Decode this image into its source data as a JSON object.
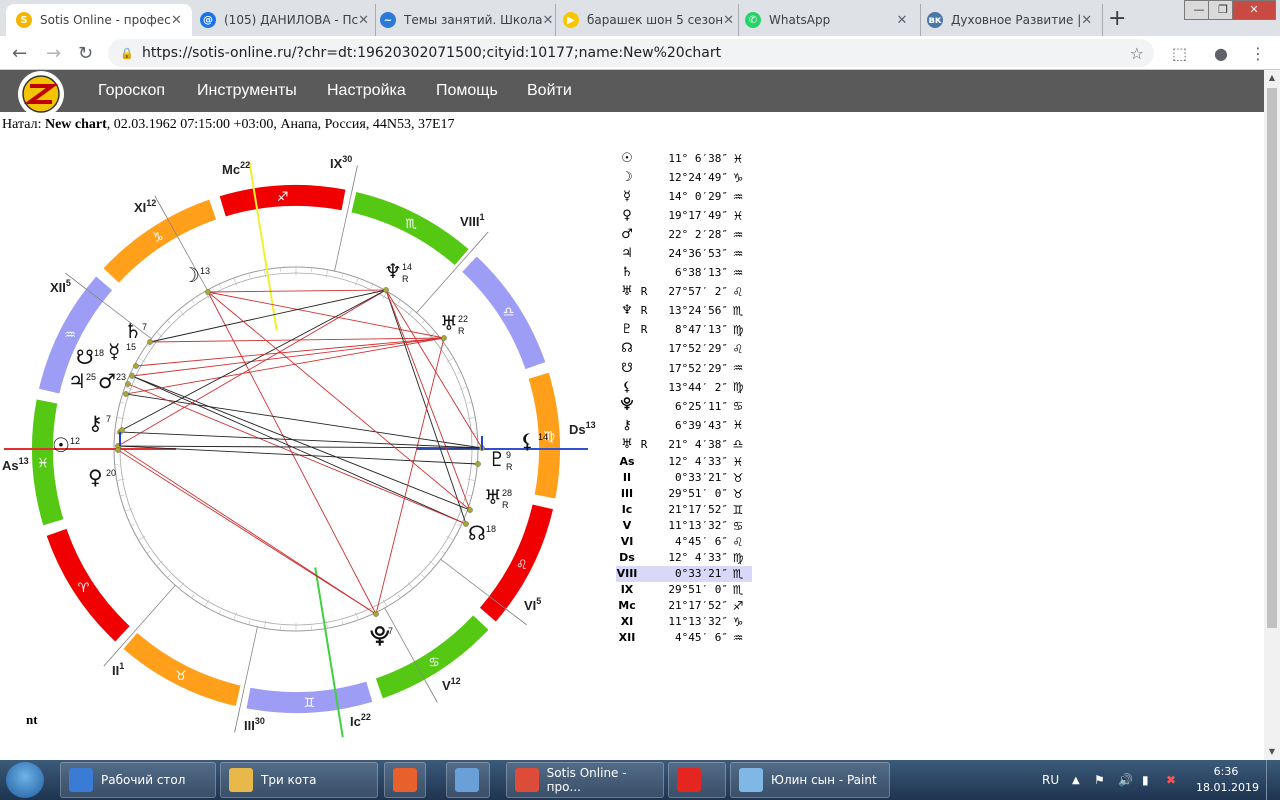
{
  "browser": {
    "tabs": [
      {
        "title": "Sotis Online - профес",
        "color": "#f5b400",
        "glyph": "S",
        "active": true
      },
      {
        "title": "(105) ДАНИЛОВА - Пс",
        "color": "#1a73e8",
        "glyph": "@",
        "active": false
      },
      {
        "title": "Темы занятий. Школа",
        "color": "#2a7ad5",
        "glyph": "~",
        "active": false
      },
      {
        "title": "барашек шон 5 сезон",
        "color": "#f7c600",
        "glyph": "▶",
        "active": false
      },
      {
        "title": "WhatsApp",
        "color": "#25d366",
        "glyph": "✆",
        "active": false
      },
      {
        "title": "Духовное Развитие |",
        "color": "#4a76a8",
        "glyph": "вк",
        "active": false
      }
    ],
    "url": "https://sotis-online.ru/?chr=dt:19620302071500;cityid:10177;name:New%20chart"
  },
  "site": {
    "menu": [
      "Гороскоп",
      "Инструменты",
      "Настройка",
      "Помощь",
      "Войти"
    ]
  },
  "natal": {
    "prefix": "Натал:",
    "name": "New chart",
    "details": ", 02.03.1962 07:15:00 +03:00, Анапа, Россия, 44N53, 37E17"
  },
  "chart_labels": {
    "houses": [
      {
        "label": "Mc",
        "deg": "22"
      },
      {
        "label": "IX",
        "deg": "30"
      },
      {
        "label": "VIII",
        "deg": "1"
      },
      {
        "label": "Ds",
        "deg": "13"
      },
      {
        "label": "VI",
        "deg": "5"
      },
      {
        "label": "V",
        "deg": "12"
      },
      {
        "label": "Ic",
        "deg": "22"
      },
      {
        "label": "III",
        "deg": "30"
      },
      {
        "label": "II",
        "deg": "1"
      },
      {
        "label": "As",
        "deg": "13"
      },
      {
        "label": "XII",
        "deg": "5"
      },
      {
        "label": "XI",
        "deg": "12"
      }
    ],
    "planets": [
      {
        "glyph": "☽",
        "deg": "13",
        "r": ""
      },
      {
        "glyph": "♄",
        "deg": "7",
        "r": ""
      },
      {
        "glyph": "☋",
        "deg": "18",
        "r": ""
      },
      {
        "glyph": "☿",
        "deg": "15",
        "r": ""
      },
      {
        "glyph": "♃",
        "deg": "25",
        "r": ""
      },
      {
        "glyph": "♂",
        "deg": "23",
        "r": ""
      },
      {
        "glyph": "⚷",
        "deg": "7",
        "r": ""
      },
      {
        "glyph": "☉",
        "deg": "12",
        "r": ""
      },
      {
        "glyph": "♀",
        "deg": "20",
        "r": ""
      },
      {
        "glyph": "♆",
        "deg": "14",
        "r": "R"
      },
      {
        "glyph": "♅",
        "deg": "22",
        "r": "R"
      },
      {
        "glyph": "⚸",
        "deg": "14",
        "r": ""
      },
      {
        "glyph": "♇",
        "deg": "9",
        "r": "R"
      },
      {
        "glyph": "♅",
        "deg": "28",
        "r": "R"
      },
      {
        "glyph": "☊",
        "deg": "18",
        "r": ""
      },
      {
        "glyph": "⯓",
        "deg": "7",
        "r": ""
      }
    ]
  },
  "positions": [
    {
      "sym": "☉",
      "r": "",
      "deg": "11° 6′38″",
      "zodiac": "♓"
    },
    {
      "sym": "☽",
      "r": "",
      "deg": "12°24′49″",
      "zodiac": "♑"
    },
    {
      "sym": "☿",
      "r": "",
      "deg": "14° 0′29″",
      "zodiac": "♒"
    },
    {
      "sym": "♀",
      "r": "",
      "deg": "19°17′49″",
      "zodiac": "♓"
    },
    {
      "sym": "♂",
      "r": "",
      "deg": "22° 2′28″",
      "zodiac": "♒"
    },
    {
      "sym": "♃",
      "r": "",
      "deg": "24°36′53″",
      "zodiac": "♒"
    },
    {
      "sym": "♄",
      "r": "",
      "deg": "6°38′13″",
      "zodiac": "♒"
    },
    {
      "sym": "♅",
      "r": "R",
      "deg": "27°57′ 2″",
      "zodiac": "♌"
    },
    {
      "sym": "♆",
      "r": "R",
      "deg": "13°24′56″",
      "zodiac": "♏"
    },
    {
      "sym": "♇",
      "r": "R",
      "deg": "8°47′13″",
      "zodiac": "♍"
    },
    {
      "sym": "☊",
      "r": "",
      "deg": "17°52′29″",
      "zodiac": "♌"
    },
    {
      "sym": "☋",
      "r": "",
      "deg": "17°52′29″",
      "zodiac": "♒"
    },
    {
      "sym": "⚸",
      "r": "",
      "deg": "13°44′ 2″",
      "zodiac": "♍"
    },
    {
      "sym": "⯓",
      "r": "",
      "deg": "6°25′11″",
      "zodiac": "♋"
    },
    {
      "sym": "⚷",
      "r": "",
      "deg": "6°39′43″",
      "zodiac": "♓"
    },
    {
      "sym": "♅",
      "r": "R",
      "deg": "21° 4′38″",
      "zodiac": "♎"
    },
    {
      "sym": "As",
      "r": "",
      "deg": "12° 4′33″",
      "zodiac": "♓"
    },
    {
      "sym": "II",
      "r": "",
      "deg": "0°33′21″",
      "zodiac": "♉"
    },
    {
      "sym": "III",
      "r": "",
      "deg": "29°51′ 0″",
      "zodiac": "♉"
    },
    {
      "sym": "Ic",
      "r": "",
      "deg": "21°17′52″",
      "zodiac": "♊"
    },
    {
      "sym": "V",
      "r": "",
      "deg": "11°13′32″",
      "zodiac": "♋"
    },
    {
      "sym": "VI",
      "r": "",
      "deg": "4°45′ 6″",
      "zodiac": "♌"
    },
    {
      "sym": "Ds",
      "r": "",
      "deg": "12° 4′33″",
      "zodiac": "♍"
    },
    {
      "sym": "VIII",
      "r": "",
      "deg": "0°33′21″",
      "zodiac": "♏"
    },
    {
      "sym": "IX",
      "r": "",
      "deg": "29°51′ 0″",
      "zodiac": "♏"
    },
    {
      "sym": "Mc",
      "r": "",
      "deg": "21°17′52″",
      "zodiac": "♐"
    },
    {
      "sym": "XI",
      "r": "",
      "deg": "11°13′32″",
      "zodiac": "♑"
    },
    {
      "sym": "XII",
      "r": "",
      "deg": "4°45′ 6″",
      "zodiac": "♒"
    }
  ],
  "footer_label": "nt",
  "taskbar": {
    "items": [
      {
        "label": "Рабочий стол",
        "color": "#3a7bd5"
      },
      {
        "label": "Три кота",
        "color": "#e8b84a"
      },
      {
        "label": "",
        "color": "#e8602c"
      },
      {
        "label": "",
        "color": "#6aa0d8"
      },
      {
        "label": "Sotis Online - про...",
        "color": "#dd4b39"
      },
      {
        "label": "",
        "color": "#e52620"
      },
      {
        "label": "Юлин сын - Paint",
        "color": "#7fb8e6"
      }
    ],
    "lang": "RU",
    "time": "6:36",
    "date": "18.01.2019"
  }
}
